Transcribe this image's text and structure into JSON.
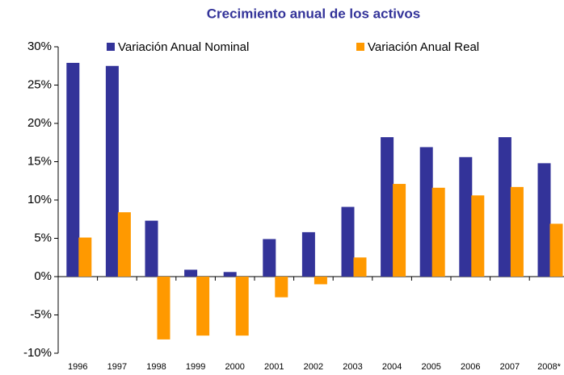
{
  "chart_data": {
    "type": "bar",
    "title": "Crecimiento anual de los activos",
    "categories": [
      "1996",
      "1997",
      "1998",
      "1999",
      "2000",
      "2001",
      "2002",
      "2003",
      "2004",
      "2005",
      "2006",
      "2007",
      "2008*"
    ],
    "series": [
      {
        "name": "Variación Anual Nominal",
        "color": "#333399",
        "values": [
          27.9,
          27.5,
          7.3,
          0.9,
          0.6,
          4.9,
          5.8,
          9.1,
          18.2,
          16.9,
          15.6,
          18.2,
          14.8
        ]
      },
      {
        "name": "Variación Anual Real",
        "color": "#FF9900",
        "values": [
          5.1,
          8.4,
          -8.2,
          -7.7,
          -7.7,
          -2.7,
          -1.0,
          2.5,
          12.1,
          11.6,
          10.6,
          11.7,
          6.9
        ]
      }
    ],
    "ylim": [
      -10,
      30
    ],
    "yticks": [
      {
        "value": -10,
        "label": "-10%"
      },
      {
        "value": -5,
        "label": "-5%"
      },
      {
        "value": 0,
        "label": "0%"
      },
      {
        "value": 5,
        "label": "5%"
      },
      {
        "value": 10,
        "label": "10%"
      },
      {
        "value": 15,
        "label": "15%"
      },
      {
        "value": 20,
        "label": "20%"
      },
      {
        "value": 25,
        "label": "25%"
      },
      {
        "value": 30,
        "label": "30%"
      }
    ],
    "legend": "top"
  }
}
